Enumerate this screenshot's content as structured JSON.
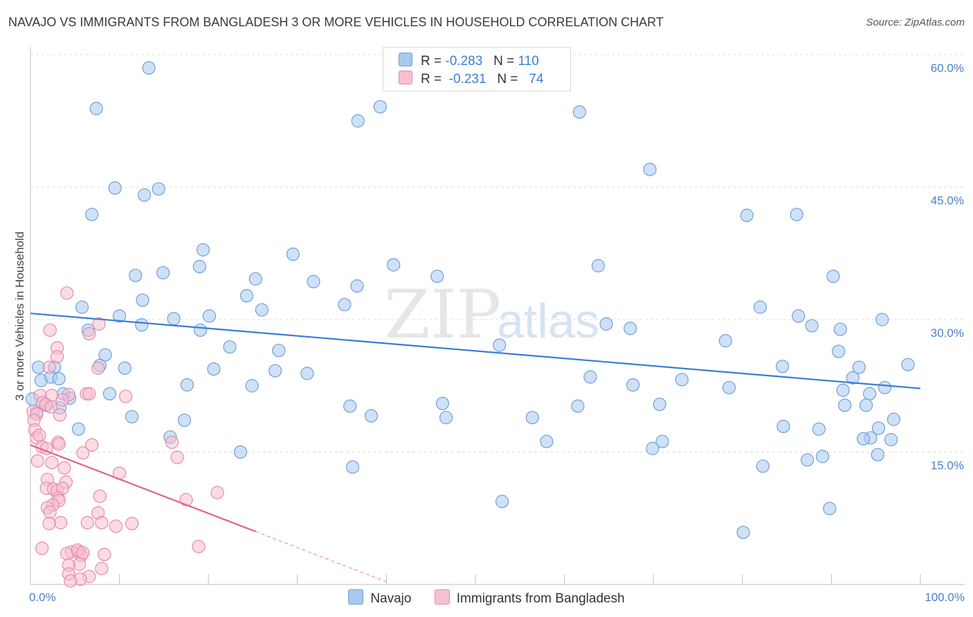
{
  "title": "NAVAJO VS IMMIGRANTS FROM BANGLADESH 3 OR MORE VEHICLES IN HOUSEHOLD CORRELATION CHART",
  "source": "Source: ZipAtlas.com",
  "watermark": {
    "zip": "ZIP",
    "atlas": "atlas"
  },
  "legend": {
    "rows": [
      {
        "r_label": "R =",
        "r_value": "-0.283",
        "n_label": "N =",
        "n_value": "110",
        "color": "#a8c8ef",
        "border": "#6f9fd8"
      },
      {
        "r_label": "R =",
        "r_value": "-0.231",
        "n_label": "N =",
        "n_value": "74",
        "color": "#f7c0d0",
        "border": "#e58aa8"
      }
    ]
  },
  "bottom_legend": [
    {
      "label": "Navajo",
      "color": "#a8c8ef",
      "border": "#6f9fd8"
    },
    {
      "label": "Immigrants from Bangladesh",
      "color": "#f7c0d0",
      "border": "#e58aa8"
    }
  ],
  "chart_data": {
    "type": "scatter",
    "title": "NAVAJO VS IMMIGRANTS FROM BANGLADESH 3 OR MORE VEHICLES IN HOUSEHOLD CORRELATION CHART",
    "xlabel": "",
    "ylabel": "3 or more Vehicles in Household",
    "xlim": [
      0,
      100
    ],
    "ylim": [
      0,
      60
    ],
    "x_tick_labels": [
      "0.0%",
      "100.0%"
    ],
    "y_ticks": [
      15,
      30,
      45,
      60
    ],
    "y_tick_labels": [
      "15.0%",
      "30.0%",
      "45.0%",
      "60.0%"
    ],
    "grid": "horizontal dashed",
    "legend_position": "top-center",
    "series": [
      {
        "name": "Navajo",
        "color": "#a8c8ef",
        "stroke": "#6f9fd8",
        "trend": {
          "x": [
            0,
            100
          ],
          "y": [
            30.7,
            22.2
          ],
          "color": "#3a7bd5"
        },
        "points": [
          [
            13.3,
            58.5
          ],
          [
            7.4,
            53.9
          ],
          [
            36.8,
            52.5
          ],
          [
            39.3,
            54.1
          ],
          [
            61.7,
            53.5
          ],
          [
            69.6,
            47.0
          ],
          [
            9.5,
            44.9
          ],
          [
            12.8,
            44.1
          ],
          [
            14.4,
            44.8
          ],
          [
            6.9,
            41.9
          ],
          [
            80.5,
            41.8
          ],
          [
            86.1,
            41.9
          ],
          [
            19.4,
            37.9
          ],
          [
            29.5,
            37.4
          ],
          [
            19.0,
            36.0
          ],
          [
            40.8,
            36.2
          ],
          [
            63.8,
            36.1
          ],
          [
            14.9,
            35.3
          ],
          [
            11.8,
            35.0
          ],
          [
            25.3,
            34.6
          ],
          [
            31.8,
            34.3
          ],
          [
            36.7,
            33.8
          ],
          [
            45.7,
            34.9
          ],
          [
            90.2,
            34.9
          ],
          [
            24.3,
            32.7
          ],
          [
            12.6,
            32.2
          ],
          [
            5.8,
            31.4
          ],
          [
            26.0,
            31.1
          ],
          [
            35.3,
            31.7
          ],
          [
            82.0,
            31.4
          ],
          [
            10.0,
            30.4
          ],
          [
            16.1,
            30.1
          ],
          [
            20.1,
            30.4
          ],
          [
            86.3,
            30.4
          ],
          [
            12.5,
            29.4
          ],
          [
            64.7,
            29.5
          ],
          [
            67.4,
            29.0
          ],
          [
            87.8,
            29.3
          ],
          [
            91.0,
            28.9
          ],
          [
            95.7,
            30.0
          ],
          [
            6.5,
            28.8
          ],
          [
            19.1,
            28.8
          ],
          [
            52.7,
            27.1
          ],
          [
            78.1,
            27.6
          ],
          [
            27.9,
            26.5
          ],
          [
            8.4,
            26.0
          ],
          [
            22.4,
            26.9
          ],
          [
            90.8,
            26.4
          ],
          [
            0.9,
            24.6
          ],
          [
            2.7,
            24.6
          ],
          [
            7.8,
            24.8
          ],
          [
            10.6,
            24.5
          ],
          [
            20.6,
            24.4
          ],
          [
            27.5,
            24.2
          ],
          [
            98.6,
            24.9
          ],
          [
            84.5,
            24.7
          ],
          [
            93.1,
            24.6
          ],
          [
            1.2,
            23.1
          ],
          [
            2.3,
            23.5
          ],
          [
            3.2,
            23.3
          ],
          [
            31.1,
            23.9
          ],
          [
            62.9,
            23.5
          ],
          [
            73.2,
            23.2
          ],
          [
            92.4,
            23.4
          ],
          [
            17.6,
            22.6
          ],
          [
            24.9,
            22.5
          ],
          [
            67.7,
            22.6
          ],
          [
            78.5,
            22.3
          ],
          [
            91.3,
            22.0
          ],
          [
            96.0,
            22.3
          ],
          [
            3.7,
            21.6
          ],
          [
            8.9,
            21.6
          ],
          [
            94.3,
            21.6
          ],
          [
            3.3,
            20.0
          ],
          [
            35.9,
            20.2
          ],
          [
            46.3,
            20.5
          ],
          [
            61.5,
            20.2
          ],
          [
            70.7,
            20.4
          ],
          [
            93.9,
            20.3
          ],
          [
            91.5,
            20.3
          ],
          [
            11.4,
            19.0
          ],
          [
            17.3,
            18.6
          ],
          [
            38.3,
            19.1
          ],
          [
            46.7,
            18.9
          ],
          [
            56.4,
            18.9
          ],
          [
            97.0,
            18.7
          ],
          [
            5.4,
            17.6
          ],
          [
            84.6,
            17.9
          ],
          [
            88.6,
            17.6
          ],
          [
            95.3,
            17.7
          ],
          [
            15.7,
            16.7
          ],
          [
            58.0,
            16.2
          ],
          [
            71.0,
            16.2
          ],
          [
            94.4,
            16.6
          ],
          [
            96.7,
            16.4
          ],
          [
            69.9,
            15.4
          ],
          [
            93.6,
            16.5
          ],
          [
            23.6,
            15.0
          ],
          [
            89.0,
            14.5
          ],
          [
            87.3,
            14.1
          ],
          [
            36.2,
            13.3
          ],
          [
            82.3,
            13.4
          ],
          [
            95.2,
            14.7
          ],
          [
            53.0,
            9.4
          ],
          [
            89.8,
            8.6
          ],
          [
            80.1,
            5.9
          ],
          [
            0.2,
            21.0
          ],
          [
            1.8,
            20.3
          ],
          [
            4.4,
            21.1
          ],
          [
            0.7,
            19.5
          ]
        ]
      },
      {
        "name": "Immigrants from Bangladesh",
        "color": "#f7c0d0",
        "stroke": "#e58aa8",
        "trend": {
          "x": [
            0,
            25.3
          ],
          "y": [
            15.8,
            6.0
          ],
          "color": "#e0628c",
          "dashed_extension": {
            "x": [
              25.3,
              40
            ],
            "y": [
              6.0,
              0.3
            ]
          }
        },
        "points": [
          [
            4.1,
            33.0
          ],
          [
            7.7,
            29.5
          ],
          [
            2.2,
            28.8
          ],
          [
            6.6,
            28.4
          ],
          [
            3.0,
            26.8
          ],
          [
            3.0,
            25.8
          ],
          [
            7.6,
            24.5
          ],
          [
            2.1,
            24.6
          ],
          [
            1.1,
            21.4
          ],
          [
            2.4,
            21.4
          ],
          [
            4.3,
            21.5
          ],
          [
            6.3,
            21.6
          ],
          [
            6.6,
            21.6
          ],
          [
            10.7,
            21.3
          ],
          [
            1.4,
            20.6
          ],
          [
            1.7,
            20.4
          ],
          [
            3.6,
            20.9
          ],
          [
            2.3,
            20.1
          ],
          [
            0.3,
            19.6
          ],
          [
            0.7,
            19.3
          ],
          [
            3.3,
            19.2
          ],
          [
            0.4,
            18.6
          ],
          [
            0.5,
            17.5
          ],
          [
            0.7,
            16.6
          ],
          [
            1.0,
            16.9
          ],
          [
            3.1,
            16.1
          ],
          [
            6.9,
            15.8
          ],
          [
            15.9,
            16.1
          ],
          [
            1.3,
            15.6
          ],
          [
            1.8,
            15.4
          ],
          [
            3.2,
            15.9
          ],
          [
            5.9,
            14.9
          ],
          [
            16.5,
            14.4
          ],
          [
            0.8,
            14.0
          ],
          [
            2.4,
            13.8
          ],
          [
            3.8,
            13.2
          ],
          [
            10.0,
            12.6
          ],
          [
            1.9,
            11.9
          ],
          [
            4.0,
            11.6
          ],
          [
            1.8,
            10.9
          ],
          [
            2.6,
            10.8
          ],
          [
            3.0,
            10.6
          ],
          [
            3.6,
            10.9
          ],
          [
            21.0,
            10.4
          ],
          [
            7.8,
            10.0
          ],
          [
            3.1,
            9.8
          ],
          [
            3.2,
            9.5
          ],
          [
            17.5,
            9.6
          ],
          [
            2.5,
            9.0
          ],
          [
            1.9,
            8.7
          ],
          [
            2.2,
            8.2
          ],
          [
            7.6,
            8.1
          ],
          [
            3.4,
            7.0
          ],
          [
            6.4,
            7.0
          ],
          [
            8.0,
            7.0
          ],
          [
            2.1,
            6.9
          ],
          [
            11.4,
            6.9
          ],
          [
            9.6,
            6.6
          ],
          [
            1.3,
            4.1
          ],
          [
            18.9,
            4.3
          ],
          [
            4.6,
            3.7
          ],
          [
            5.5,
            3.7
          ],
          [
            5.7,
            3.3
          ],
          [
            8.3,
            3.4
          ],
          [
            4.1,
            3.5
          ],
          [
            5.3,
            3.9
          ],
          [
            5.9,
            3.6
          ],
          [
            5.5,
            2.3
          ],
          [
            4.3,
            2.2
          ],
          [
            8.0,
            1.8
          ],
          [
            4.3,
            1.2
          ],
          [
            6.6,
            0.9
          ],
          [
            5.6,
            0.6
          ],
          [
            4.5,
            0.4
          ]
        ]
      }
    ]
  }
}
